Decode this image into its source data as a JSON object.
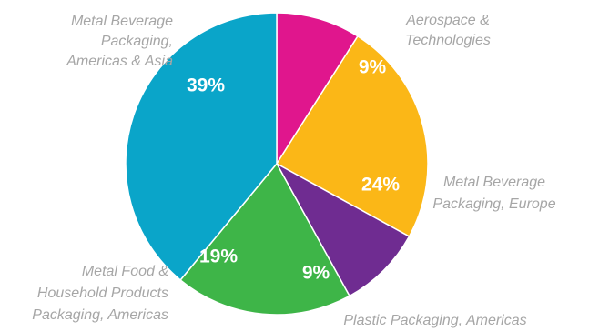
{
  "chart_data": {
    "type": "pie",
    "title": "",
    "start": "12 o'clock, clockwise",
    "slices": [
      {
        "label": "Aerospace & Technologies",
        "value": 9,
        "display": "9%",
        "color": "#e0168d"
      },
      {
        "label": "Metal Beverage Packaging, Europe",
        "value": 24,
        "display": "24%",
        "color": "#fbb717"
      },
      {
        "label": "Plastic Packaging, Americas",
        "value": 9,
        "display": "9%",
        "color": "#6f2c91"
      },
      {
        "label": "Metal Food & Household Products Packaging, Americas",
        "value": 19,
        "display": "19%",
        "color": "#3eb548"
      },
      {
        "label": "Metal Beverage Packaging, Americas & Asia",
        "value": 39,
        "display": "39%",
        "color": "#0aa5c9"
      }
    ],
    "category_label_lines": [
      [
        "Aerospace &",
        "Technologies"
      ],
      [
        "Metal Beverage",
        "Packaging, Europe"
      ],
      [
        "Plastic Packaging, Americas"
      ],
      [
        "Metal Food &",
        "Household Products",
        "Packaging, Americas"
      ],
      [
        "Metal Beverage",
        "Packaging,",
        "Americas & Asia"
      ]
    ]
  }
}
